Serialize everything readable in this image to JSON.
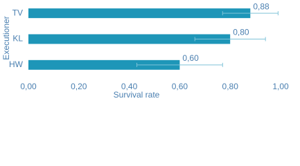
{
  "chart_data": {
    "type": "barh",
    "categories": [
      "TV",
      "KL",
      "HW"
    ],
    "values": [
      0.88,
      0.8,
      0.6
    ],
    "value_labels": [
      "0,88",
      "0,80",
      "0,60"
    ],
    "errors": [
      0.11,
      0.14,
      0.17
    ],
    "color": "#1e96b8",
    "error_color": "#7fc3d8",
    "xlabel": "Survival rate",
    "ylabel": "Executioner",
    "xlim": [
      0,
      1
    ],
    "xticks": [
      {
        "value": 0,
        "label": "0,00"
      },
      {
        "value": 0.2,
        "label": "0,20"
      },
      {
        "value": 0.4,
        "label": "0,40"
      },
      {
        "value": 0.6,
        "label": "0,60"
      },
      {
        "value": 0.8,
        "label": "0,80"
      },
      {
        "value": 1,
        "label": "1,00"
      }
    ]
  }
}
